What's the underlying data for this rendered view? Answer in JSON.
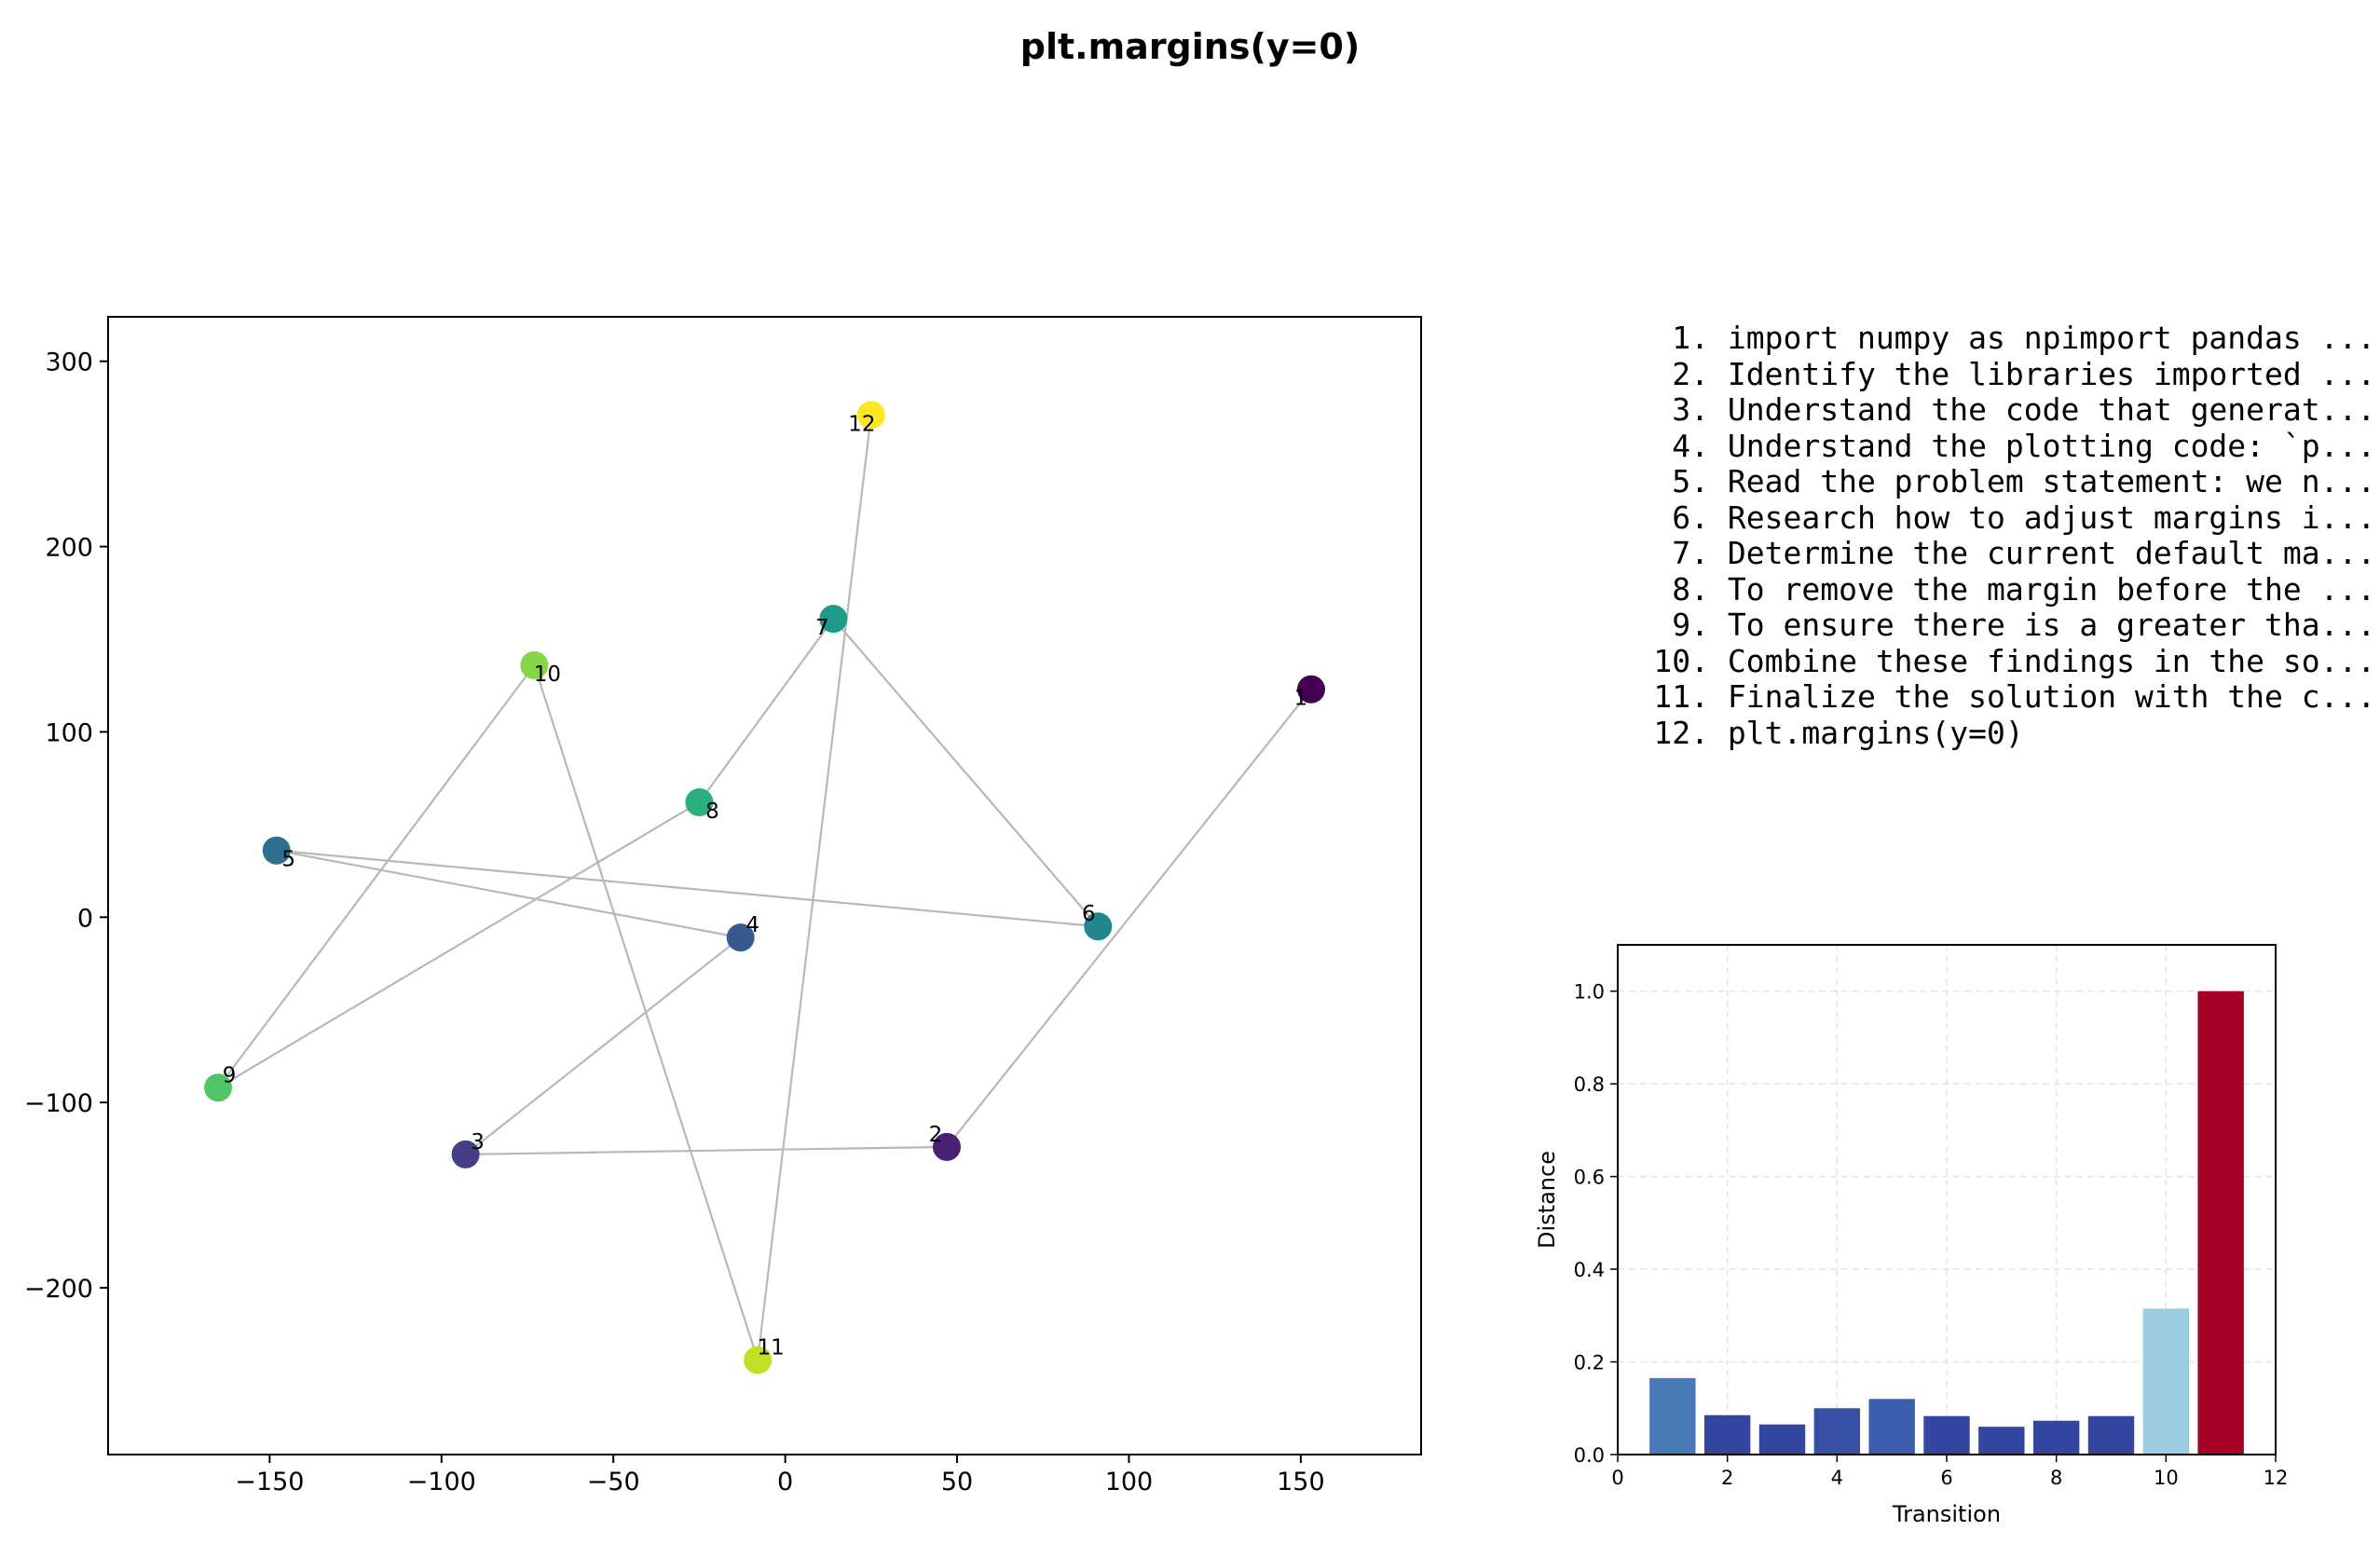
{
  "figure": {
    "title": "plt.margins(y=0)"
  },
  "steps": [
    {
      "num": "1.",
      "text": "import numpy as npimport pandas ..."
    },
    {
      "num": "2.",
      "text": "Identify the libraries imported ..."
    },
    {
      "num": "3.",
      "text": "Understand the code that generat..."
    },
    {
      "num": "4.",
      "text": "Understand the plotting code: `p..."
    },
    {
      "num": "5.",
      "text": "Read the problem statement: we n..."
    },
    {
      "num": "6.",
      "text": "Research how to adjust margins i..."
    },
    {
      "num": "7.",
      "text": "Determine the current default ma..."
    },
    {
      "num": "8.",
      "text": "To remove the margin before the ..."
    },
    {
      "num": "9.",
      "text": "To ensure there is a greater tha..."
    },
    {
      "num": "10.",
      "text": "Combine these findings in the so..."
    },
    {
      "num": "11.",
      "text": "Finalize the solution with the c..."
    },
    {
      "num": "12.",
      "text": "plt.margins(y=0)"
    }
  ],
  "chart_data": [
    {
      "type": "scatter",
      "title": "",
      "xlabel": "",
      "ylabel": "",
      "xlim": [
        -197,
        185
      ],
      "ylim": [
        -290,
        324
      ],
      "xticks": [
        -150,
        -100,
        -50,
        0,
        50,
        100,
        150
      ],
      "yticks": [
        -200,
        -100,
        0,
        100,
        200,
        300
      ],
      "xtick_labels": [
        "−150",
        "−100",
        "−50",
        "0",
        "50",
        "100",
        "150"
      ],
      "ytick_labels": [
        "−200",
        "−100",
        "0",
        "100",
        "200",
        "300"
      ],
      "grid": false,
      "colormap": "viridis",
      "line_color": "#b8b8b8",
      "connected_in_order": true,
      "points": [
        {
          "label": "1",
          "x": 153,
          "y": 123,
          "color": "#440154"
        },
        {
          "label": "2",
          "x": 47,
          "y": -124,
          "color": "#482173"
        },
        {
          "label": "3",
          "x": -93,
          "y": -128,
          "color": "#433e85"
        },
        {
          "label": "4",
          "x": -13,
          "y": -11,
          "color": "#38598c"
        },
        {
          "label": "5",
          "x": -148,
          "y": 36,
          "color": "#2d708e"
        },
        {
          "label": "6",
          "x": 91,
          "y": -5,
          "color": "#25858e"
        },
        {
          "label": "7",
          "x": 14,
          "y": 161,
          "color": "#1e9b8a"
        },
        {
          "label": "8",
          "x": -25,
          "y": 62,
          "color": "#2ab07f"
        },
        {
          "label": "9",
          "x": -165,
          "y": -92,
          "color": "#52c569"
        },
        {
          "label": "10",
          "x": -73,
          "y": 136,
          "color": "#86d549"
        },
        {
          "label": "11",
          "x": -8,
          "y": -239,
          "color": "#c2df23"
        },
        {
          "label": "12",
          "x": 25,
          "y": 271,
          "color": "#fde725"
        }
      ]
    },
    {
      "type": "bar",
      "title": "",
      "xlabel": "Transition",
      "ylabel": "Distance",
      "xlim": [
        0,
        12
      ],
      "ylim": [
        0,
        1.1
      ],
      "xticks": [
        0,
        2,
        4,
        6,
        8,
        10,
        12
      ],
      "yticks": [
        0.0,
        0.2,
        0.4,
        0.6,
        0.8,
        1.0
      ],
      "ytick_labels": [
        "0.0",
        "0.2",
        "0.4",
        "0.6",
        "0.8",
        "1.0"
      ],
      "grid": true,
      "grid_style": "dashed",
      "x": [
        1,
        2,
        3,
        4,
        5,
        6,
        7,
        8,
        9,
        10,
        11
      ],
      "values": [
        0.165,
        0.085,
        0.065,
        0.1,
        0.12,
        0.083,
        0.06,
        0.073,
        0.083,
        0.315,
        1.0
      ],
      "colors": [
        "#4a7ab8",
        "#3446a0",
        "#3446a0",
        "#3750a6",
        "#3d5eaf",
        "#3446a0",
        "#3446a0",
        "#3446a0",
        "#3446a0",
        "#9bcbe2",
        "#a50026"
      ]
    }
  ]
}
